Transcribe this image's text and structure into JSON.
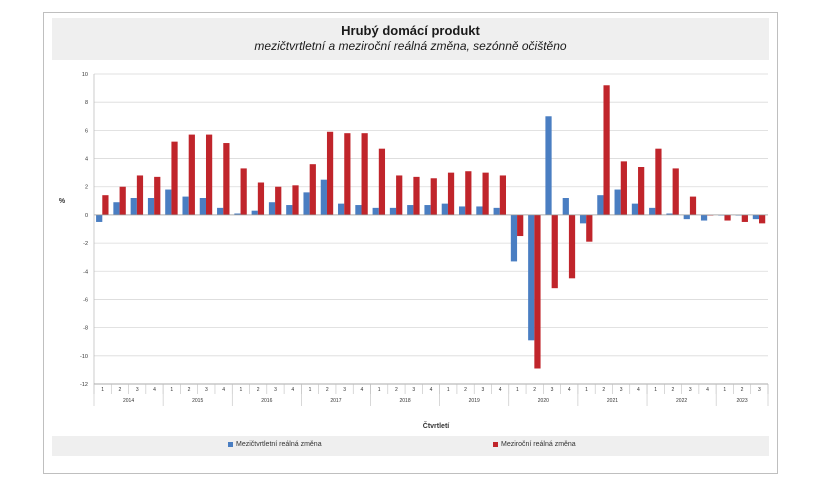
{
  "chart_data": {
    "type": "bar",
    "title": "Hrubý domácí produkt",
    "subtitle": "mezičtvrtletní a meziroční reálná změna, sezónně očištěno",
    "xlabel": "Čtvrtletí",
    "ylabel": "%",
    "ylim": [
      -12,
      10
    ],
    "yticks": [
      10,
      8,
      6,
      4,
      2,
      0,
      -2,
      -4,
      -6,
      -8,
      -10,
      -12
    ],
    "grid": true,
    "legend_position": "bottom",
    "categories": [
      "1",
      "2",
      "3",
      "4",
      "1",
      "2",
      "3",
      "4",
      "1",
      "2",
      "3",
      "4",
      "1",
      "2",
      "3",
      "4",
      "1",
      "2",
      "3",
      "4",
      "1",
      "2",
      "3",
      "4",
      "1",
      "2",
      "3",
      "4",
      "1",
      "2",
      "3",
      "4",
      "1",
      "2",
      "3",
      "4",
      "1",
      "2",
      "3"
    ],
    "years": [
      {
        "label": "2014",
        "count": 4
      },
      {
        "label": "2015",
        "count": 4
      },
      {
        "label": "2016",
        "count": 4
      },
      {
        "label": "2017",
        "count": 4
      },
      {
        "label": "2018",
        "count": 4
      },
      {
        "label": "2019",
        "count": 4
      },
      {
        "label": "2020",
        "count": 4
      },
      {
        "label": "2021",
        "count": 4
      },
      {
        "label": "2022",
        "count": 4
      },
      {
        "label": "2023",
        "count": 3
      }
    ],
    "series": [
      {
        "name": "Mezičtvrtletní reálná změna",
        "color": "#4a7ec2",
        "values": [
          -0.5,
          0.9,
          1.2,
          1.2,
          1.8,
          1.3,
          1.2,
          0.5,
          0.1,
          0.3,
          0.9,
          0.7,
          1.6,
          2.5,
          0.8,
          0.7,
          0.5,
          0.5,
          0.7,
          0.7,
          0.8,
          0.6,
          0.6,
          0.5,
          -3.3,
          -8.9,
          7.0,
          1.2,
          -0.6,
          1.4,
          1.8,
          0.8,
          0.5,
          0.1,
          -0.3,
          -0.4,
          0.0,
          0.0,
          -0.3
        ]
      },
      {
        "name": "Meziroční reálná změna",
        "color": "#c0252b",
        "values": [
          1.4,
          2.0,
          2.8,
          2.7,
          5.2,
          5.7,
          5.7,
          5.1,
          3.3,
          2.3,
          2.0,
          2.1,
          3.6,
          5.9,
          5.8,
          5.8,
          4.7,
          2.8,
          2.7,
          2.6,
          3.0,
          3.1,
          3.0,
          2.8,
          -1.5,
          -10.9,
          -5.2,
          -4.5,
          -1.9,
          9.2,
          3.8,
          3.4,
          4.7,
          3.3,
          1.3,
          0.0,
          -0.4,
          -0.5,
          -0.6
        ]
      }
    ]
  }
}
